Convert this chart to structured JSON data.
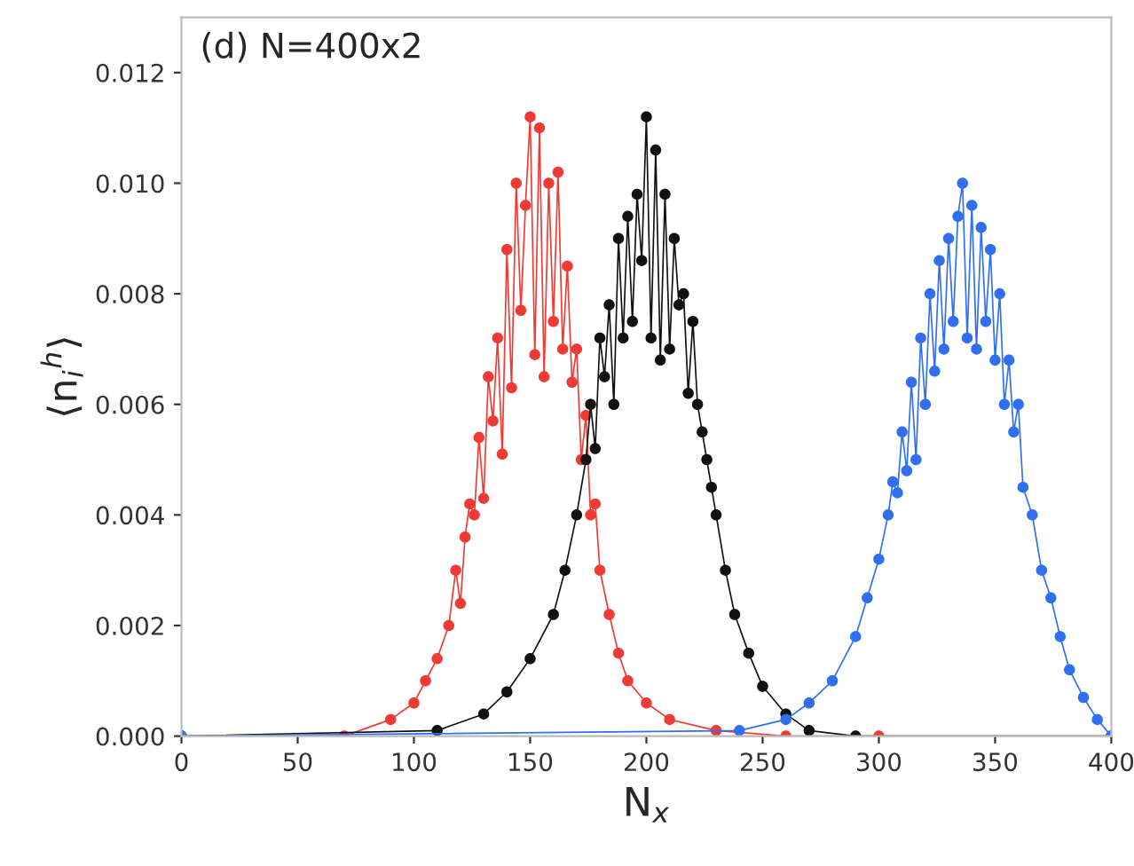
{
  "chart_data": {
    "type": "line",
    "xlabel": "N$_{x}$",
    "ylabel": "⟨n$_{i}$$^{h}$⟩",
    "annotations": [
      "(d) N=400x2"
    ],
    "marker": "circle",
    "grid": false,
    "xlim": [
      0,
      400
    ],
    "ylim": [
      0,
      0.013
    ],
    "xticks": [
      0,
      50,
      100,
      150,
      200,
      250,
      300,
      350,
      400
    ],
    "yticks": [
      {
        "value": 0,
        "label": "0.000"
      },
      {
        "value": 0.002,
        "label": "0.002"
      },
      {
        "value": 0.004,
        "label": "0.004"
      },
      {
        "value": 0.006,
        "label": "0.006"
      },
      {
        "value": 0.008,
        "label": "0.008"
      },
      {
        "value": 0.01,
        "label": "0.010"
      },
      {
        "value": 0.012,
        "label": "0.012"
      }
    ],
    "series": [
      {
        "color": "#f03a35",
        "x": [
          0,
          70,
          90,
          100,
          105,
          110,
          115,
          118,
          120,
          122,
          124,
          126,
          128,
          130,
          132,
          134,
          136,
          138,
          140,
          142,
          144,
          146,
          148,
          150,
          152,
          154,
          156,
          158,
          160,
          162,
          164,
          166,
          168,
          170,
          172,
          174,
          176,
          178,
          180,
          184,
          188,
          192,
          200,
          210,
          230,
          260,
          300,
          400
        ],
        "values": [
          0,
          0,
          0.0003,
          0.0006,
          0.001,
          0.0014,
          0.002,
          0.003,
          0.0024,
          0.0036,
          0.0042,
          0.004,
          0.0054,
          0.0043,
          0.0065,
          0.0057,
          0.0072,
          0.0051,
          0.0088,
          0.0063,
          0.01,
          0.0077,
          0.0096,
          0.0112,
          0.0069,
          0.011,
          0.0065,
          0.01,
          0.0075,
          0.0102,
          0.007,
          0.0085,
          0.0064,
          0.007,
          0.005,
          0.0058,
          0.004,
          0.0042,
          0.003,
          0.0022,
          0.0015,
          0.001,
          0.0006,
          0.0003,
          0.0001,
          0.0,
          0,
          0
        ]
      },
      {
        "color": "#111111",
        "x": [
          0,
          110,
          130,
          140,
          150,
          160,
          165,
          170,
          174,
          176,
          178,
          180,
          182,
          184,
          186,
          188,
          190,
          192,
          194,
          196,
          198,
          200,
          202,
          204,
          206,
          208,
          210,
          212,
          214,
          216,
          218,
          220,
          222,
          224,
          226,
          228,
          230,
          234,
          238,
          244,
          250,
          260,
          270,
          290,
          400
        ],
        "values": [
          0,
          0.0001,
          0.0004,
          0.0008,
          0.0014,
          0.0022,
          0.003,
          0.004,
          0.005,
          0.006,
          0.0052,
          0.0072,
          0.0065,
          0.0078,
          0.006,
          0.009,
          0.0072,
          0.0094,
          0.0075,
          0.0098,
          0.0086,
          0.0112,
          0.0072,
          0.0106,
          0.0068,
          0.0098,
          0.007,
          0.009,
          0.0078,
          0.008,
          0.0062,
          0.0075,
          0.006,
          0.0055,
          0.005,
          0.0045,
          0.004,
          0.003,
          0.0022,
          0.0015,
          0.0009,
          0.0004,
          0.0001,
          0,
          0
        ]
      },
      {
        "color": "#2f6ff0",
        "x": [
          0,
          240,
          260,
          270,
          280,
          290,
          295,
          300,
          304,
          306,
          308,
          310,
          312,
          314,
          316,
          318,
          320,
          322,
          324,
          326,
          328,
          330,
          332,
          334,
          336,
          338,
          340,
          342,
          344,
          346,
          348,
          350,
          352,
          354,
          356,
          358,
          360,
          362,
          366,
          370,
          374,
          378,
          382,
          388,
          394,
          400
        ],
        "values": [
          0,
          0.0001,
          0.0003,
          0.0006,
          0.001,
          0.0018,
          0.0025,
          0.0032,
          0.004,
          0.0046,
          0.0044,
          0.0055,
          0.0048,
          0.0064,
          0.005,
          0.0072,
          0.006,
          0.008,
          0.0066,
          0.0086,
          0.007,
          0.009,
          0.0075,
          0.0094,
          0.01,
          0.0072,
          0.0096,
          0.007,
          0.0092,
          0.0075,
          0.0088,
          0.0068,
          0.008,
          0.006,
          0.0068,
          0.0055,
          0.006,
          0.0045,
          0.004,
          0.003,
          0.0025,
          0.0018,
          0.0012,
          0.0007,
          0.0003,
          0
        ]
      }
    ]
  }
}
